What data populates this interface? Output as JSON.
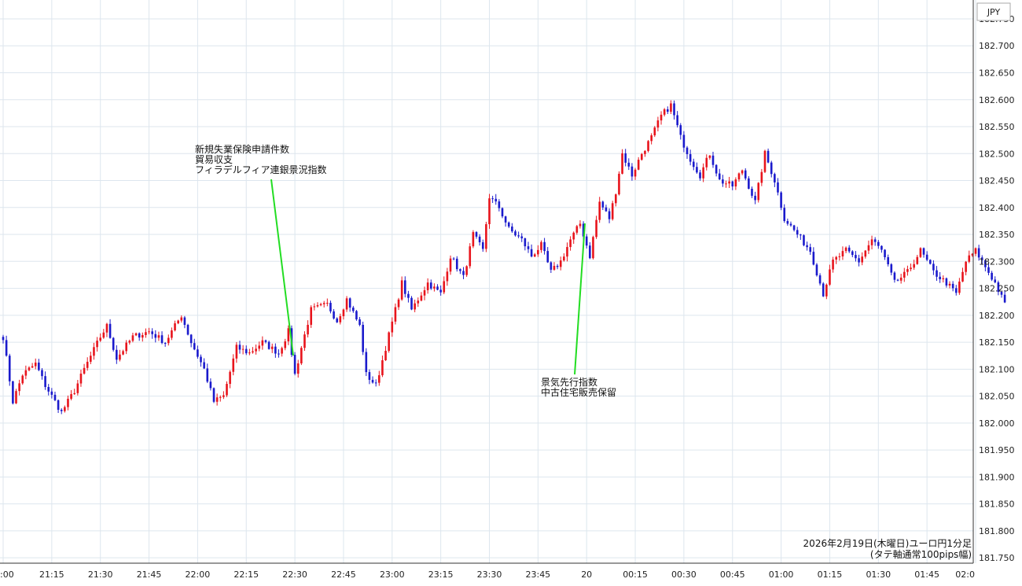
{
  "chart_data": {
    "type": "candlestick",
    "unit": "JPY",
    "x_ticks": [
      ":00",
      "21:15",
      "21:30",
      "21:45",
      "22:00",
      "22:15",
      "22:30",
      "22:45",
      "23:00",
      "23:15",
      "23:30",
      "23:45",
      "20",
      "00:15",
      "00:30",
      "00:45",
      "01:00",
      "01:15",
      "01:30",
      "01:45",
      "02:0"
    ],
    "ylim": [
      181.74,
      182.785
    ],
    "y_ticks": [
      "182.750",
      "182.700",
      "182.650",
      "182.600",
      "182.550",
      "182.500",
      "182.450",
      "182.400",
      "182.350",
      "182.300",
      "182.250",
      "182.200",
      "182.150",
      "182.100",
      "182.050",
      "182.000",
      "181.950",
      "181.900",
      "181.850",
      "181.800",
      "181.750"
    ],
    "grid": true,
    "colors": {
      "up": "#e8141c",
      "down": "#1a1acc",
      "annotation_line": "#22dd22",
      "grid": "#dde6ee"
    },
    "caption": [
      "2026年2月19日(木曜日)ユーロ円1分足",
      "(タテ軸通常100pips幅)"
    ],
    "annotations": [
      {
        "lines": [
          "新規失業保険申請件数",
          "貿易収支",
          "フィラデルフィア連銀景況指数"
        ],
        "x_index": 88
      },
      {
        "lines": [
          "景気先行指数",
          "中古住宅販売保留"
        ],
        "x_index": 184
      }
    ],
    "anchors": [
      {
        "i": 0,
        "p": 182.16
      },
      {
        "i": 3,
        "p": 182.04
      },
      {
        "i": 6,
        "p": 182.09
      },
      {
        "i": 10,
        "p": 182.11
      },
      {
        "i": 13,
        "p": 182.07
      },
      {
        "i": 18,
        "p": 182.02
      },
      {
        "i": 22,
        "p": 182.06
      },
      {
        "i": 25,
        "p": 182.1
      },
      {
        "i": 30,
        "p": 182.16
      },
      {
        "i": 32,
        "p": 182.18
      },
      {
        "i": 35,
        "p": 182.12
      },
      {
        "i": 40,
        "p": 182.16
      },
      {
        "i": 45,
        "p": 182.17
      },
      {
        "i": 50,
        "p": 182.15
      },
      {
        "i": 55,
        "p": 182.2
      },
      {
        "i": 58,
        "p": 182.15
      },
      {
        "i": 62,
        "p": 182.1
      },
      {
        "i": 65,
        "p": 182.04
      },
      {
        "i": 68,
        "p": 182.05
      },
      {
        "i": 72,
        "p": 182.14
      },
      {
        "i": 76,
        "p": 182.13
      },
      {
        "i": 80,
        "p": 182.15
      },
      {
        "i": 85,
        "p": 182.13
      },
      {
        "i": 88,
        "p": 182.17
      },
      {
        "i": 90,
        "p": 182.09
      },
      {
        "i": 92,
        "p": 182.14
      },
      {
        "i": 95,
        "p": 182.21
      },
      {
        "i": 100,
        "p": 182.22
      },
      {
        "i": 103,
        "p": 182.19
      },
      {
        "i": 106,
        "p": 182.23
      },
      {
        "i": 110,
        "p": 182.18
      },
      {
        "i": 112,
        "p": 182.09
      },
      {
        "i": 115,
        "p": 182.07
      },
      {
        "i": 118,
        "p": 182.14
      },
      {
        "i": 121,
        "p": 182.21
      },
      {
        "i": 123,
        "p": 182.26
      },
      {
        "i": 126,
        "p": 182.21
      },
      {
        "i": 128,
        "p": 182.23
      },
      {
        "i": 131,
        "p": 182.26
      },
      {
        "i": 135,
        "p": 182.24
      },
      {
        "i": 138,
        "p": 182.31
      },
      {
        "i": 142,
        "p": 182.27
      },
      {
        "i": 145,
        "p": 182.35
      },
      {
        "i": 148,
        "p": 182.32
      },
      {
        "i": 150,
        "p": 182.42
      },
      {
        "i": 153,
        "p": 182.4
      },
      {
        "i": 156,
        "p": 182.36
      },
      {
        "i": 160,
        "p": 182.34
      },
      {
        "i": 163,
        "p": 182.31
      },
      {
        "i": 166,
        "p": 182.33
      },
      {
        "i": 169,
        "p": 182.28
      },
      {
        "i": 172,
        "p": 182.3
      },
      {
        "i": 175,
        "p": 182.34
      },
      {
        "i": 178,
        "p": 182.37
      },
      {
        "i": 181,
        "p": 182.31
      },
      {
        "i": 184,
        "p": 182.41
      },
      {
        "i": 187,
        "p": 182.38
      },
      {
        "i": 189,
        "p": 182.43
      },
      {
        "i": 191,
        "p": 182.5
      },
      {
        "i": 194,
        "p": 182.46
      },
      {
        "i": 197,
        "p": 182.5
      },
      {
        "i": 200,
        "p": 182.53
      },
      {
        "i": 203,
        "p": 182.57
      },
      {
        "i": 206,
        "p": 182.59
      },
      {
        "i": 209,
        "p": 182.53
      },
      {
        "i": 212,
        "p": 182.49
      },
      {
        "i": 215,
        "p": 182.46
      },
      {
        "i": 218,
        "p": 182.5
      },
      {
        "i": 221,
        "p": 182.45
      },
      {
        "i": 225,
        "p": 182.44
      },
      {
        "i": 228,
        "p": 182.47
      },
      {
        "i": 232,
        "p": 182.41
      },
      {
        "i": 235,
        "p": 182.5
      },
      {
        "i": 238,
        "p": 182.45
      },
      {
        "i": 241,
        "p": 182.38
      },
      {
        "i": 245,
        "p": 182.35
      },
      {
        "i": 249,
        "p": 182.32
      },
      {
        "i": 253,
        "p": 182.24
      },
      {
        "i": 256,
        "p": 182.3
      },
      {
        "i": 260,
        "p": 182.32
      },
      {
        "i": 264,
        "p": 182.3
      },
      {
        "i": 268,
        "p": 182.34
      },
      {
        "i": 271,
        "p": 182.32
      },
      {
        "i": 275,
        "p": 182.26
      },
      {
        "i": 279,
        "p": 182.28
      },
      {
        "i": 283,
        "p": 182.32
      },
      {
        "i": 287,
        "p": 182.28
      },
      {
        "i": 291,
        "p": 182.26
      },
      {
        "i": 294,
        "p": 182.24
      },
      {
        "i": 297,
        "p": 182.3
      },
      {
        "i": 300,
        "p": 182.32
      },
      {
        "i": 303,
        "p": 182.29
      },
      {
        "i": 306,
        "p": 182.26
      },
      {
        "i": 309,
        "p": 182.22
      }
    ]
  }
}
